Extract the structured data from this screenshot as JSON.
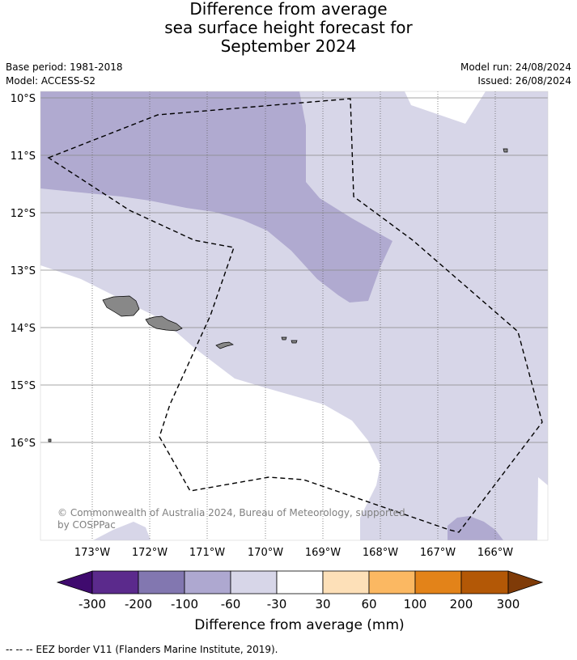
{
  "title": {
    "line1": "Difference from average",
    "line2": "sea surface height forecast for",
    "line3": "September 2024"
  },
  "meta": {
    "base_period": "Base period: 1981-2018",
    "model": "Model: ACCESS-S2",
    "model_run": "Model run: 24/08/2024",
    "issued": "Issued: 26/08/2024"
  },
  "map": {
    "lat_labels": [
      "10°S",
      "11°S",
      "12°S",
      "13°S",
      "14°S",
      "15°S",
      "16°S"
    ],
    "lon_labels": [
      "173°W",
      "172°W",
      "171°W",
      "170°W",
      "169°W",
      "168°W",
      "167°W",
      "166°W"
    ],
    "copyright_line1": "© Commonwealth of Australia 2024, Bureau of Meteorology, supported",
    "copyright_line2": "by COSPPac",
    "land_color": "#888888",
    "eez_line": "dashed black"
  },
  "colorbar": {
    "ticks": [
      "-300",
      "-200",
      "-100",
      "-60",
      "-30",
      "30",
      "60",
      "100",
      "200",
      "300"
    ],
    "label": "Difference from average (mm)",
    "colors": [
      "#3f0a6e",
      "#5b2a8c",
      "#8277b0",
      "#aea8d0",
      "#d7d6e8",
      "#ffffff",
      "#fde0b8",
      "#fbb862",
      "#e38319",
      "#b35806",
      "#7f3b08"
    ]
  },
  "footnote": "--  --  -- EEZ border V11 (Flanders Marine Institute, 2019)."
}
